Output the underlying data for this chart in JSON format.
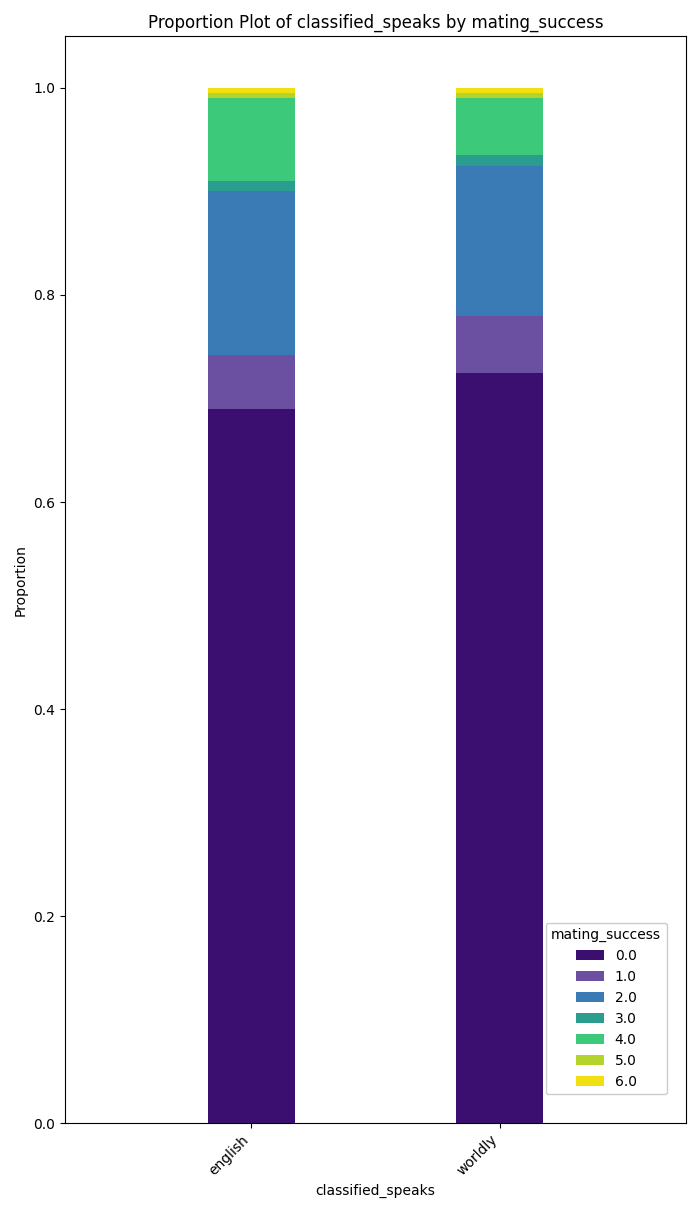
{
  "title": "Proportion Plot of classified_speaks by mating_success",
  "xlabel": "classified_speaks",
  "ylabel": "Proportion",
  "categories": [
    "english",
    "worldly"
  ],
  "mating_success_labels": [
    "0.0",
    "1.0",
    "2.0",
    "3.0",
    "4.0",
    "5.0",
    "6.0"
  ],
  "proportions": {
    "english": [
      0.69,
      0.052,
      0.158,
      0.01,
      0.08,
      0.005,
      0.005
    ],
    "worldly": [
      0.725,
      0.055,
      0.145,
      0.01,
      0.055,
      0.005,
      0.005
    ]
  },
  "colors": [
    "#3b0f6f",
    "#6b4fa0",
    "#3a7ab5",
    "#2a9d8f",
    "#3dc97a",
    "#b5d42b",
    "#f0e011"
  ],
  "legend_title": "mating_success",
  "ylim": [
    0.0,
    1.05
  ],
  "bar_width": 0.35,
  "figsize": [
    7.0,
    12.12
  ],
  "dpi": 100,
  "yticks": [
    0.0,
    0.2,
    0.4,
    0.6,
    0.8,
    1.0
  ]
}
